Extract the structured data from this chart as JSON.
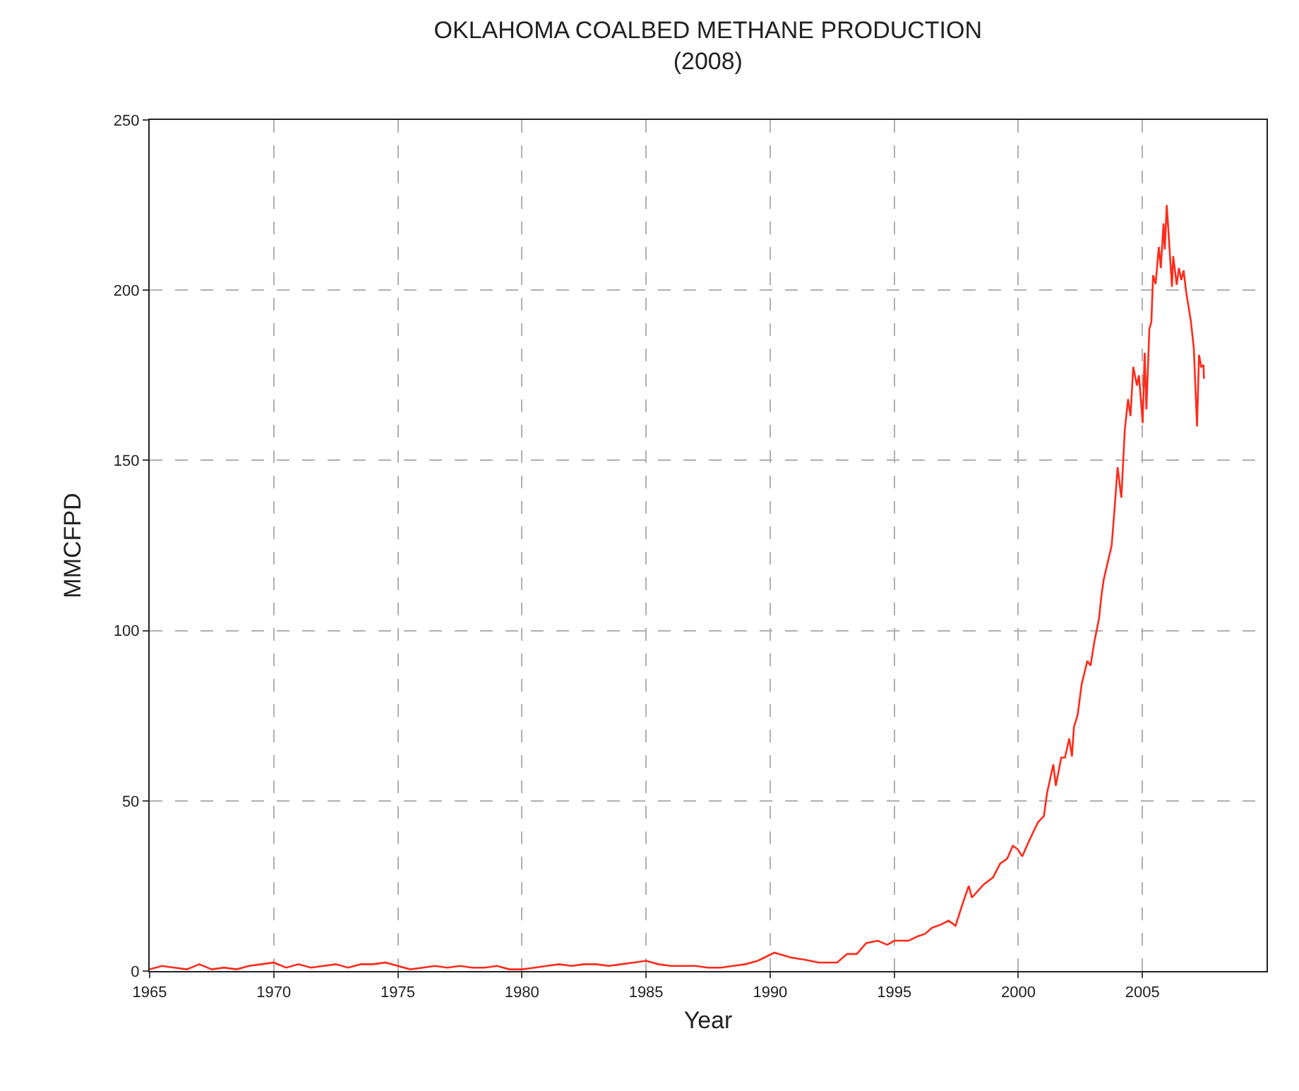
{
  "chart_data": {
    "type": "line",
    "title": "OKLAHOMA COALBED METHANE PRODUCTION",
    "subtitle": "(2008)",
    "xlabel": "Year",
    "ylabel": "MMCFPD",
    "xlim": [
      1965,
      2010
    ],
    "xticks": [
      1965,
      1970,
      1975,
      1980,
      1985,
      1990,
      1995,
      2000,
      2005
    ],
    "ylim": [
      0,
      250
    ],
    "yticks": [
      0,
      50,
      100,
      150,
      200,
      250
    ],
    "grid": true,
    "marker": "none",
    "line_style": "solid",
    "series": [
      {
        "color": "#ff2a1a",
        "x": [
          1965,
          1965.5,
          1966,
          1966.5,
          1967,
          1967.5,
          1968,
          1968.5,
          1969,
          1969.5,
          1970,
          1970.5,
          1971,
          1971.5,
          1972,
          1972.5,
          1973,
          1973.5,
          1974,
          1974.5,
          1975,
          1975.5,
          1976,
          1976.5,
          1977,
          1977.5,
          1978,
          1978.5,
          1979,
          1979.5,
          1980,
          1980.5,
          1981,
          1981.5,
          1982,
          1982.5,
          1983,
          1983.5,
          1984,
          1984.5,
          1985,
          1985.5,
          1986,
          1986.5,
          1987,
          1987.5,
          1988,
          1988.5,
          1989,
          1989.5,
          1990.17,
          1990.83,
          1991.4,
          1991.97,
          1992.7,
          1993.1,
          1993.49,
          1993.87,
          1994.34,
          1994.72,
          1995,
          1995.57,
          1995.95,
          1996.24,
          1996.52,
          1996.9,
          1997.19,
          1997.47,
          1997.76,
          1998,
          1998.13,
          1998.6,
          1998.98,
          1999.27,
          1999.55,
          1999.78,
          1999.97,
          2000.16,
          2000.41,
          2000.79,
          2001.03,
          2001.16,
          2001.41,
          2001.51,
          2001.73,
          2001.88,
          2002.05,
          2002.16,
          2002.24,
          2002.39,
          2002.55,
          2002.78,
          2002.91,
          2003.06,
          2003.25,
          2003.35,
          2003.44,
          2003.76,
          2003.87,
          2004,
          2004.15,
          2004.29,
          2004.42,
          2004.52,
          2004.63,
          2004.78,
          2004.86,
          2005.01,
          2005.09,
          2005.16,
          2005.28,
          2005.36,
          2005.43,
          2005.53,
          2005.66,
          2005.74,
          2005.85,
          2005.9,
          2005.98,
          2006.07,
          2006.19,
          2006.24,
          2006.38,
          2006.47,
          2006.57,
          2006.66,
          2006.76,
          2006.95,
          2007.07,
          2007.2,
          2007.28,
          2007.37,
          2007.46,
          2007.48
        ],
        "values": [
          0.5,
          1.5,
          1,
          0.5,
          2,
          0.5,
          1,
          0.5,
          1.5,
          2,
          2.5,
          1,
          2,
          1,
          1.5,
          2,
          1,
          2,
          2,
          2.5,
          1.5,
          0.5,
          1,
          1.5,
          1,
          1.5,
          1,
          1,
          1.5,
          0.5,
          0.5,
          1,
          1.5,
          2,
          1.5,
          2,
          2,
          1.5,
          2,
          2.5,
          3,
          2,
          1.5,
          1.5,
          1.5,
          1,
          1,
          1.5,
          2,
          3,
          5.4,
          4,
          3.3,
          2.5,
          2.5,
          5,
          5,
          8.2,
          8.9,
          7.7,
          8.9,
          8.9,
          10.2,
          10.9,
          12.7,
          13.7,
          14.8,
          13.3,
          19.9,
          25,
          21.6,
          25.4,
          27.5,
          31.6,
          33,
          36.8,
          35.8,
          33.7,
          37.9,
          43.7,
          45.5,
          52.4,
          60.7,
          54.4,
          62.7,
          62.7,
          68.3,
          63,
          71.7,
          75.2,
          84.2,
          91.1,
          89.7,
          96.6,
          103.5,
          110.4,
          115,
          125,
          135,
          148,
          139,
          159,
          168,
          163,
          177.5,
          172,
          175,
          161,
          181.6,
          165,
          188.6,
          190.7,
          204.4,
          201.8,
          212.7,
          206.5,
          219.6,
          212,
          225,
          214.8,
          201,
          210,
          201.6,
          206.5,
          203,
          205.8,
          199.6,
          191,
          183,
          160,
          181,
          177.5,
          178,
          174
        ]
      }
    ]
  }
}
